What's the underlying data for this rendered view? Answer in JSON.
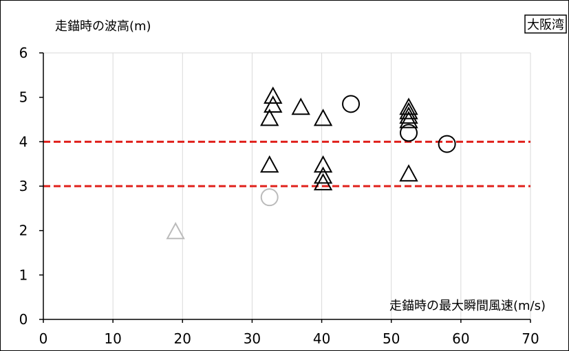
{
  "chart_data": {
    "type": "scatter",
    "title": "",
    "ylabel": "走錨時の波高(m)",
    "xlabel": "走錨時の最大瞬間風速(m/s)",
    "region_label": "大阪湾",
    "xlim": [
      0,
      70
    ],
    "ylim": [
      0,
      6
    ],
    "x_ticks": [
      "0",
      "10",
      "20",
      "30",
      "40",
      "50",
      "60",
      "70"
    ],
    "y_ticks": [
      "0",
      "1",
      "2",
      "3",
      "4",
      "5",
      "6"
    ],
    "grid": "vertical",
    "reference_lines": [
      {
        "y": 4,
        "color": "#e0201b",
        "style": "dashed"
      },
      {
        "y": 3,
        "color": "#e0201b",
        "style": "dashed"
      }
    ],
    "series": [
      {
        "marker": "triangle",
        "color": "#000000",
        "points": [
          {
            "x": 33,
            "y": 5.0
          },
          {
            "x": 33,
            "y": 4.8
          },
          {
            "x": 32.5,
            "y": 4.5
          },
          {
            "x": 37,
            "y": 4.75
          },
          {
            "x": 40.2,
            "y": 4.5
          },
          {
            "x": 52.5,
            "y": 4.75
          },
          {
            "x": 52.5,
            "y": 4.65
          },
          {
            "x": 52.5,
            "y": 4.55
          },
          {
            "x": 52.5,
            "y": 4.45
          },
          {
            "x": 32.5,
            "y": 3.45
          },
          {
            "x": 40.2,
            "y": 3.45
          },
          {
            "x": 40.2,
            "y": 3.2
          },
          {
            "x": 40.2,
            "y": 3.05
          },
          {
            "x": 52.5,
            "y": 3.25
          }
        ]
      },
      {
        "marker": "circle",
        "color": "#000000",
        "points": [
          {
            "x": 44.2,
            "y": 4.85
          },
          {
            "x": 52.5,
            "y": 4.2
          },
          {
            "x": 58,
            "y": 3.95
          }
        ]
      },
      {
        "marker": "triangle",
        "color": "#bbbbbb",
        "points": [
          {
            "x": 19,
            "y": 1.95
          }
        ]
      },
      {
        "marker": "circle",
        "color": "#bbbbbb",
        "points": [
          {
            "x": 32.5,
            "y": 2.75
          }
        ]
      }
    ]
  }
}
